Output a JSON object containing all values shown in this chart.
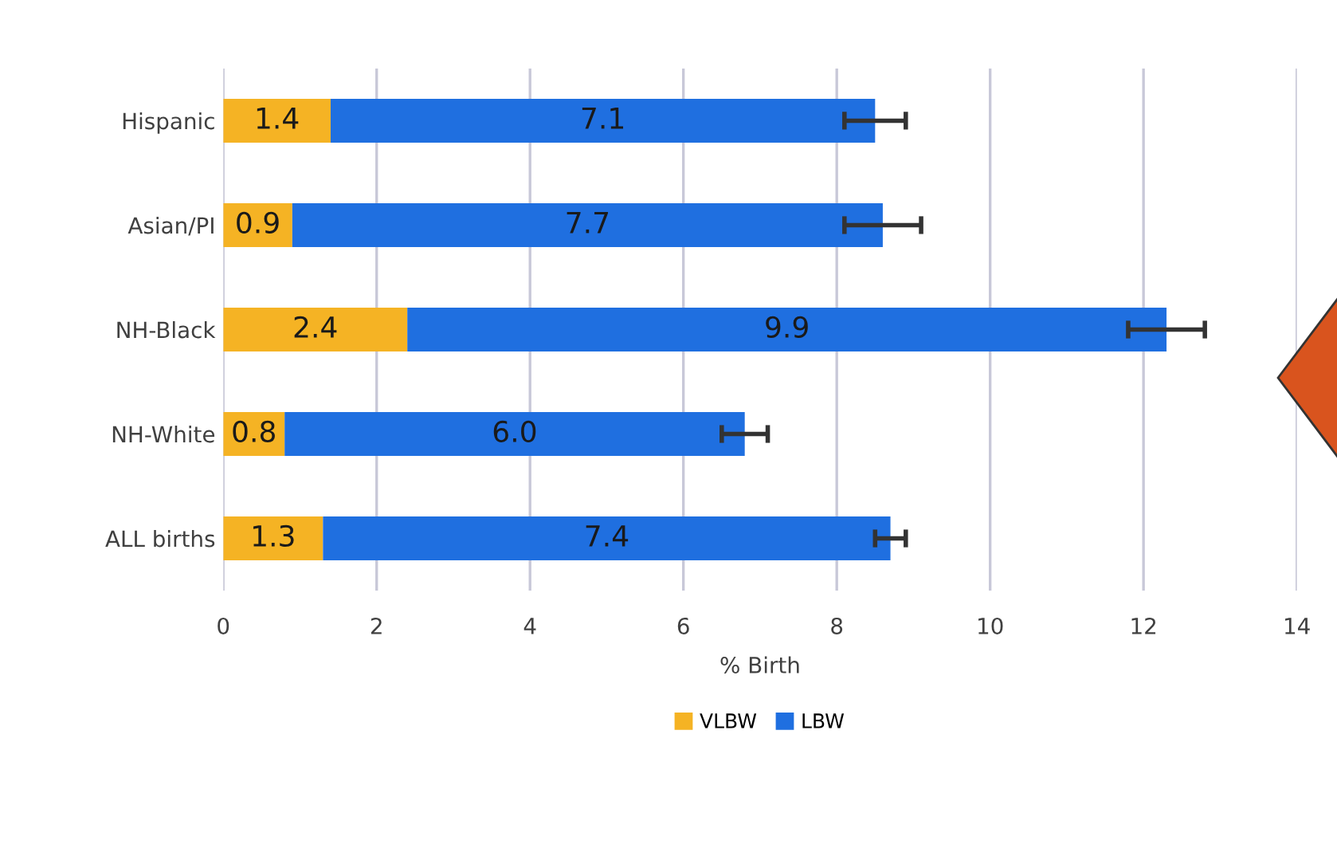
{
  "chart_data": {
    "type": "bar",
    "orientation": "horizontal",
    "stacked": true,
    "xlabel": "% Birth",
    "categories": [
      "Hispanic",
      "Asian/PI",
      "NH-Black",
      "NH-White",
      "ALL births"
    ],
    "series": [
      {
        "name": "VLBW",
        "color": "#f5b324",
        "values": [
          1.4,
          0.9,
          2.4,
          0.8,
          1.3
        ],
        "value_labels": [
          "1.4",
          "0.9",
          "2.4",
          "0.8",
          "1.3"
        ]
      },
      {
        "name": "LBW",
        "color": "#1f6fe0",
        "values": [
          7.1,
          7.7,
          9.9,
          6.0,
          7.4
        ],
        "value_labels": [
          "7.1",
          "7.7",
          "9.9",
          "6.0",
          "7.4"
        ],
        "errors": [
          0.4,
          0.5,
          0.5,
          0.3,
          0.2
        ]
      }
    ],
    "xlim": [
      0,
      14
    ],
    "xticks": [
      0,
      2,
      4,
      6,
      8,
      10,
      12,
      14
    ],
    "grid": "x",
    "legend": "bottom"
  }
}
